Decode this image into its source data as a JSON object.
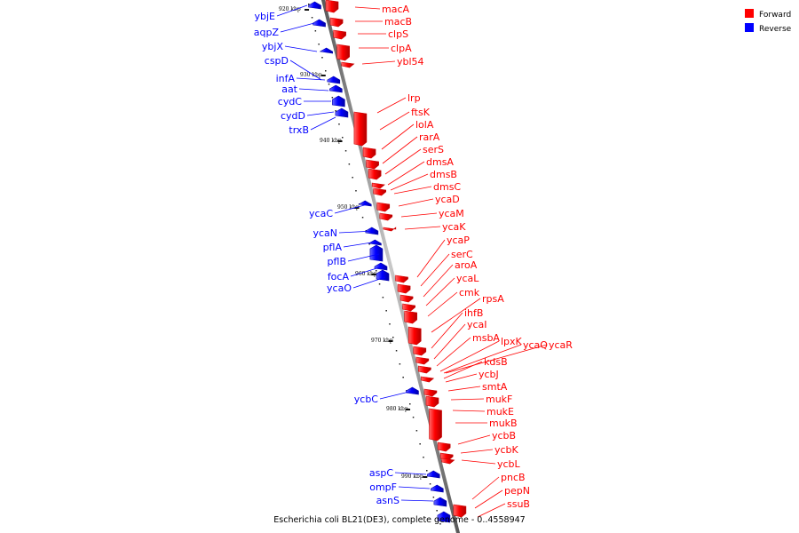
{
  "legend": [
    {
      "label": "Forward",
      "color": "#ff0000"
    },
    {
      "label": "Reverse",
      "color": "#0000ff"
    }
  ],
  "caption": "Escherichia coli BL21(DE3), complete genome - 0..4558947",
  "kbp_marks": [
    "920 kbp",
    "930 kbp",
    "940 kbp",
    "950 kbp",
    "960 kbp",
    "970 kbp",
    "980 kbp",
    "990 kbp"
  ],
  "forward_genes": [
    "macA",
    "macB",
    "clpS",
    "clpA",
    "ybl54",
    "lrp",
    "ftsK",
    "lolA",
    "rarA",
    "serS",
    "dmsA",
    "dmsB",
    "dmsC",
    "ycaD",
    "ycaM",
    "ycaK",
    "ycaP",
    "serC",
    "aroA",
    "ycaL",
    "cmk",
    "rpsA",
    "ihfB",
    "ycaI",
    "msbA",
    "lpxK",
    "ycaQ",
    "ycaR",
    "kdsB",
    "ycbJ",
    "smtA",
    "mukF",
    "mukE",
    "mukB",
    "ycbB",
    "ycbK",
    "ycbL",
    "pncB",
    "pepN",
    "ssuB"
  ],
  "reverse_genes": [
    "ybjE",
    "aqpZ",
    "ybjX",
    "cspD",
    "infA",
    "aat",
    "cydC",
    "cydD",
    "trxB",
    "ycaC",
    "ycaN",
    "pflA",
    "pflB",
    "focA",
    "ycaO",
    "ycbC",
    "aspC",
    "ompF",
    "asnS"
  ],
  "colors": {
    "forward": "#ff0000",
    "reverse": "#0000ff",
    "axis": "#808080"
  }
}
